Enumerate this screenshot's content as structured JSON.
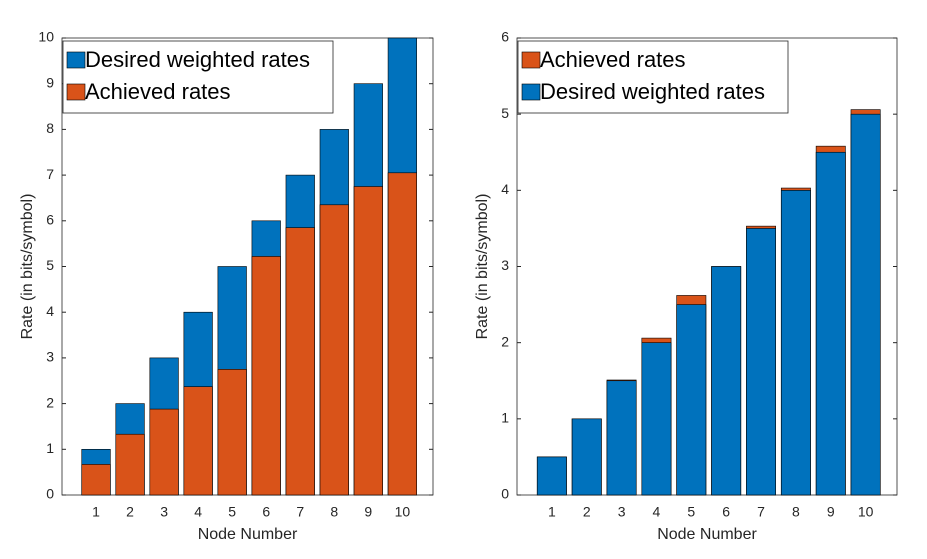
{
  "chart_data": [
    {
      "type": "bar",
      "overlap": true,
      "ylabel": "Rate (in bits/symbol)",
      "xlabel": "Node Number",
      "categories": [
        "1",
        "2",
        "3",
        "4",
        "5",
        "6",
        "7",
        "8",
        "9",
        "10"
      ],
      "series": [
        {
          "name": "Desired weighted rates",
          "color": "#0072bd",
          "values": [
            1,
            2,
            3,
            4,
            5,
            6,
            7,
            8,
            9,
            10
          ]
        },
        {
          "name": "Achieved rates",
          "color": "#d95319",
          "values": [
            0.67,
            1.33,
            1.88,
            2.37,
            2.75,
            5.22,
            5.85,
            6.35,
            6.75,
            7.05
          ]
        }
      ],
      "ylim": [
        0,
        10
      ],
      "yticks": [
        0,
        1,
        2,
        3,
        4,
        5,
        6,
        7,
        8,
        9,
        10
      ],
      "legend": "upper left"
    },
    {
      "type": "bar",
      "overlap": true,
      "ylabel": "Rate (in bits/symbol)",
      "xlabel": "Node Number",
      "categories": [
        "1",
        "2",
        "3",
        "4",
        "5",
        "6",
        "7",
        "8",
        "9",
        "10"
      ],
      "series": [
        {
          "name": "Achieved rates",
          "color": "#d95319",
          "values": [
            0.5,
            1.0,
            1.51,
            2.06,
            2.62,
            3.0,
            3.53,
            4.03,
            4.58,
            5.06
          ]
        },
        {
          "name": "Desired weighted rates",
          "color": "#0072bd",
          "values": [
            0.5,
            1,
            1.5,
            2,
            2.5,
            3,
            3.5,
            4,
            4.5,
            5
          ]
        }
      ],
      "ylim": [
        0,
        6
      ],
      "yticks": [
        0,
        1,
        2,
        3,
        4,
        5,
        6
      ],
      "legend": "upper left"
    }
  ]
}
